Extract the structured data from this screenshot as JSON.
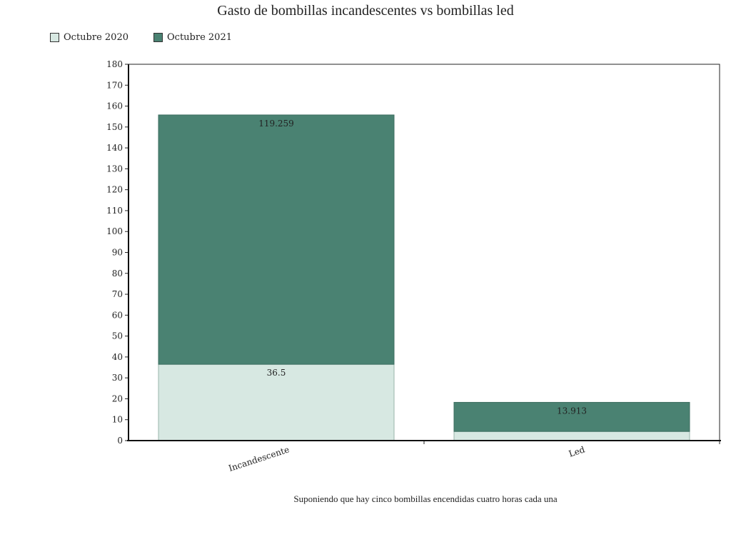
{
  "chart_data": {
    "type": "bar",
    "stacked": true,
    "title": "Gasto de bombillas incandescentes vs bombillas led",
    "categories": [
      "Incandescente",
      "Led"
    ],
    "series": [
      {
        "name": "Octubre 2020",
        "values": [
          36.5,
          4.38
        ],
        "labels": [
          "36.5",
          ""
        ],
        "color": "#d7e8e2"
      },
      {
        "name": "Octubre 2021",
        "values": [
          119.259,
          13.913
        ],
        "labels": [
          "119.259",
          "13.913"
        ],
        "color": "#4a8272"
      }
    ],
    "ylim": [
      0,
      180
    ],
    "yticks": [
      0,
      10,
      20,
      30,
      40,
      50,
      60,
      70,
      80,
      90,
      100,
      110,
      120,
      130,
      140,
      150,
      160,
      170,
      180
    ],
    "legend": "top-left",
    "caption": "Suponiendo que hay cinco bombillas encendidas cuatro horas cada una"
  }
}
